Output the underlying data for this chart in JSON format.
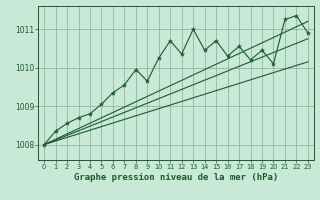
{
  "title": "Graphe pression niveau de la mer (hPa)",
  "bg_color": "#c8e8d8",
  "plot_bg_color": "#c8e8d8",
  "grid_color": "#90b8a0",
  "line_color": "#1a5c28",
  "text_color": "#1a5c28",
  "xlim": [
    -0.5,
    23.5
  ],
  "ylim": [
    1007.6,
    1011.6
  ],
  "yticks": [
    1008,
    1009,
    1010,
    1011
  ],
  "xticks": [
    0,
    1,
    2,
    3,
    4,
    5,
    6,
    7,
    8,
    9,
    10,
    11,
    12,
    13,
    14,
    15,
    16,
    17,
    18,
    19,
    20,
    21,
    22,
    23
  ],
  "main_line": {
    "x": [
      0,
      1,
      2,
      3,
      4,
      5,
      6,
      7,
      8,
      9,
      10,
      11,
      12,
      13,
      14,
      15,
      16,
      17,
      18,
      19,
      20,
      21,
      22,
      23
    ],
    "y": [
      1008.0,
      1008.35,
      1008.55,
      1008.7,
      1008.8,
      1009.05,
      1009.35,
      1009.55,
      1009.95,
      1009.65,
      1010.25,
      1010.7,
      1010.35,
      1011.0,
      1010.45,
      1010.7,
      1010.3,
      1010.55,
      1010.2,
      1010.45,
      1010.1,
      1011.25,
      1011.35,
      1010.9
    ]
  },
  "envelope_line1": {
    "x": [
      0,
      23
    ],
    "y": [
      1008.0,
      1010.15
    ]
  },
  "envelope_line2": {
    "x": [
      0,
      23
    ],
    "y": [
      1008.0,
      1010.75
    ]
  },
  "envelope_line3": {
    "x": [
      0,
      23
    ],
    "y": [
      1008.0,
      1011.2
    ]
  },
  "ylabel_fontsize": 5.5,
  "xlabel_fontsize": 5.0,
  "title_fontsize": 6.5
}
